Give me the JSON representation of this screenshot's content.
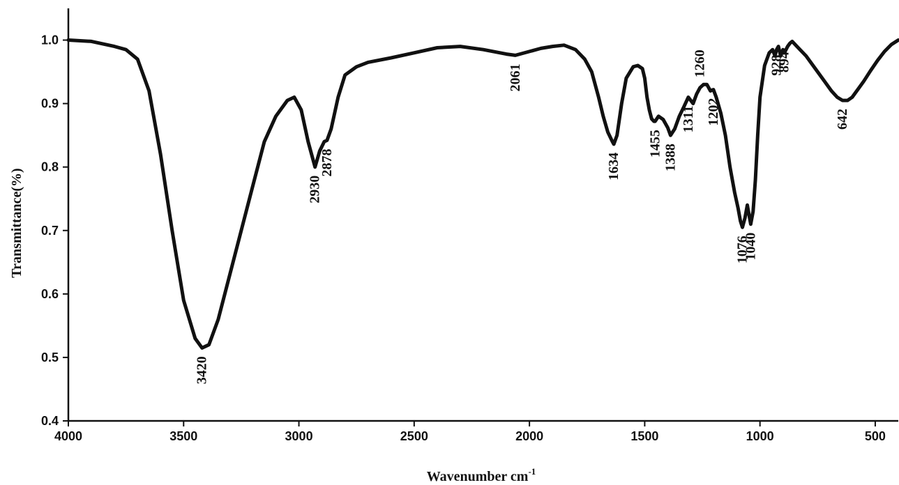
{
  "chart_data": {
    "type": "line",
    "title": "",
    "xlabel": "Wavenumber cm",
    "xlabel_superscript": "-1",
    "ylabel": "Transmittance(%)",
    "xlim": [
      4000,
      400
    ],
    "ylim": [
      0.4,
      1.05
    ],
    "x_reversed": true,
    "grid": false,
    "legend": "none",
    "color": "#111111",
    "x_ticks": [
      {
        "value": 4000,
        "label": "4000"
      },
      {
        "value": 3500,
        "label": "3500"
      },
      {
        "value": 3000,
        "label": "3000"
      },
      {
        "value": 2500,
        "label": "2500"
      },
      {
        "value": 2000,
        "label": "2000"
      },
      {
        "value": 1500,
        "label": "1500"
      },
      {
        "value": 1000,
        "label": "1000"
      },
      {
        "value": 500,
        "label": "500"
      }
    ],
    "y_ticks": [
      {
        "value": 0.4,
        "label": "0.4"
      },
      {
        "value": 0.5,
        "label": "0.5"
      },
      {
        "value": 0.6,
        "label": "0.6"
      },
      {
        "value": 0.7,
        "label": "0.7"
      },
      {
        "value": 0.8,
        "label": "0.8"
      },
      {
        "value": 0.9,
        "label": "0.9"
      },
      {
        "value": 1.0,
        "label": "1.0"
      }
    ],
    "x": [
      4000,
      3900,
      3800,
      3750,
      3700,
      3650,
      3600,
      3550,
      3500,
      3450,
      3420,
      3390,
      3350,
      3300,
      3250,
      3200,
      3150,
      3100,
      3050,
      3020,
      2990,
      2960,
      2930,
      2910,
      2890,
      2878,
      2860,
      2830,
      2800,
      2750,
      2700,
      2600,
      2500,
      2400,
      2300,
      2200,
      2100,
      2061,
      2000,
      1950,
      1900,
      1850,
      1800,
      1760,
      1730,
      1700,
      1680,
      1660,
      1640,
      1634,
      1620,
      1600,
      1580,
      1550,
      1530,
      1510,
      1500,
      1490,
      1480,
      1470,
      1460,
      1455,
      1440,
      1420,
      1400,
      1388,
      1370,
      1350,
      1330,
      1311,
      1290,
      1275,
      1260,
      1245,
      1230,
      1215,
      1202,
      1190,
      1170,
      1150,
      1130,
      1110,
      1095,
      1085,
      1076,
      1065,
      1055,
      1050,
      1040,
      1030,
      1020,
      1010,
      1000,
      980,
      960,
      945,
      935,
      928,
      920,
      910,
      900,
      894,
      880,
      870,
      860,
      840,
      800,
      760,
      720,
      690,
      665,
      642,
      620,
      600,
      580,
      550,
      520,
      490,
      460,
      430,
      400
    ],
    "y": [
      1.0,
      0.998,
      0.99,
      0.985,
      0.97,
      0.92,
      0.82,
      0.7,
      0.59,
      0.53,
      0.515,
      0.52,
      0.56,
      0.63,
      0.7,
      0.77,
      0.84,
      0.88,
      0.905,
      0.91,
      0.89,
      0.84,
      0.8,
      0.825,
      0.84,
      0.842,
      0.86,
      0.91,
      0.945,
      0.958,
      0.965,
      0.972,
      0.98,
      0.988,
      0.99,
      0.985,
      0.978,
      0.976,
      0.982,
      0.987,
      0.99,
      0.992,
      0.985,
      0.97,
      0.95,
      0.91,
      0.88,
      0.855,
      0.84,
      0.836,
      0.85,
      0.9,
      0.94,
      0.958,
      0.96,
      0.955,
      0.94,
      0.91,
      0.89,
      0.876,
      0.872,
      0.872,
      0.88,
      0.875,
      0.862,
      0.85,
      0.86,
      0.88,
      0.895,
      0.91,
      0.9,
      0.915,
      0.925,
      0.93,
      0.93,
      0.92,
      0.922,
      0.91,
      0.885,
      0.85,
      0.8,
      0.76,
      0.735,
      0.715,
      0.705,
      0.72,
      0.74,
      0.73,
      0.71,
      0.73,
      0.78,
      0.85,
      0.91,
      0.96,
      0.98,
      0.985,
      0.975,
      0.985,
      0.99,
      0.975,
      0.985,
      0.98,
      0.99,
      0.995,
      0.998,
      0.99,
      0.975,
      0.955,
      0.935,
      0.92,
      0.91,
      0.905,
      0.905,
      0.91,
      0.92,
      0.935,
      0.952,
      0.968,
      0.982,
      0.993,
      1.0
    ],
    "peak_labels": [
      {
        "x": 3420,
        "y": 0.515,
        "label": "3420",
        "position": "below"
      },
      {
        "x": 2930,
        "y": 0.8,
        "label": "2930",
        "position": "below"
      },
      {
        "x": 2878,
        "y": 0.842,
        "label": "2878",
        "position": "below"
      },
      {
        "x": 2061,
        "y": 0.976,
        "label": "2061",
        "position": "below"
      },
      {
        "x": 1634,
        "y": 0.836,
        "label": "1634",
        "position": "below"
      },
      {
        "x": 1455,
        "y": 0.872,
        "label": "1455",
        "position": "below"
      },
      {
        "x": 1388,
        "y": 0.85,
        "label": "1388",
        "position": "below"
      },
      {
        "x": 1311,
        "y": 0.91,
        "label": "1311",
        "position": "below"
      },
      {
        "x": 1260,
        "y": 0.93,
        "label": "1260",
        "position": "above"
      },
      {
        "x": 1202,
        "y": 0.922,
        "label": "1202",
        "position": "below"
      },
      {
        "x": 1076,
        "y": 0.705,
        "label": "1076",
        "position": "below"
      },
      {
        "x": 1040,
        "y": 0.71,
        "label": "1040",
        "position": "below"
      },
      {
        "x": 928,
        "y": 0.99,
        "label": "928",
        "position": "below"
      },
      {
        "x": 894,
        "y": 0.995,
        "label": "894",
        "position": "below"
      },
      {
        "x": 642,
        "y": 0.905,
        "label": "642",
        "position": "below"
      }
    ]
  }
}
